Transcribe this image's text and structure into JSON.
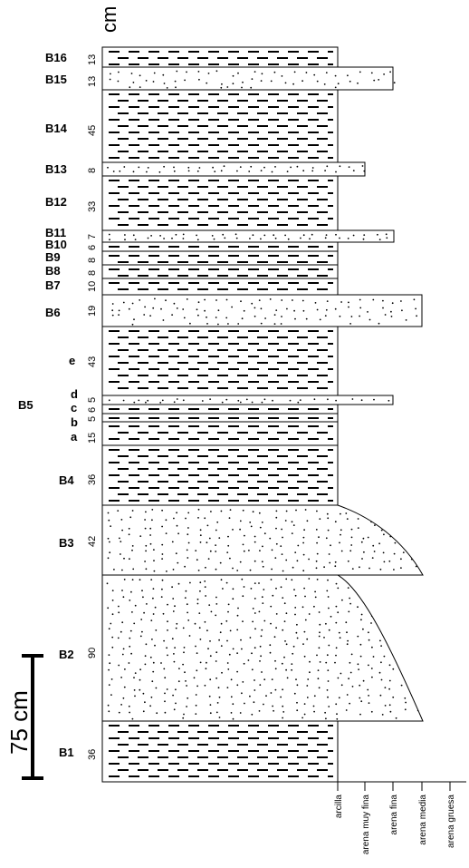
{
  "unit_label": "cm",
  "scale_bar": {
    "label": "75 cm",
    "length_cm": 75
  },
  "grain_sizes": [
    "arcilla",
    "arena muy fina",
    "arena fina",
    "arena media",
    "arena gruesa"
  ],
  "beds": [
    {
      "name": "B16",
      "thickness": "13",
      "lithology": "clay"
    },
    {
      "name": "B15",
      "thickness": "13",
      "lithology": "sand",
      "grain": "arena fina"
    },
    {
      "name": "B14",
      "thickness": "45",
      "lithology": "clay"
    },
    {
      "name": "B13",
      "thickness": "8",
      "lithology": "sand",
      "grain": "arena muy fina"
    },
    {
      "name": "B12",
      "thickness": "33",
      "lithology": "clay"
    },
    {
      "name": "B11",
      "thickness": "7",
      "lithology": "sand",
      "grain": "arena fina"
    },
    {
      "name": "B10",
      "thickness": "6",
      "lithology": "clay"
    },
    {
      "name": "B9",
      "thickness": "8",
      "lithology": "clay"
    },
    {
      "name": "B8",
      "thickness": "8",
      "lithology": "clay"
    },
    {
      "name": "B7",
      "thickness": "10",
      "lithology": "clay"
    },
    {
      "name": "B6",
      "thickness": "19",
      "lithology": "sand",
      "grain": "arena media"
    },
    {
      "name": "e",
      "thickness": "43",
      "lithology": "clay",
      "group": "B5"
    },
    {
      "name": "d",
      "thickness": "5",
      "lithology": "sand",
      "grain": "arena fina",
      "group": "B5"
    },
    {
      "name": "c",
      "thickness": "6",
      "lithology": "clay",
      "group": "B5"
    },
    {
      "name": "b",
      "thickness": "5",
      "lithology": "clay",
      "group": "B5"
    },
    {
      "name": "a",
      "thickness": "15",
      "lithology": "clay",
      "group": "B5"
    },
    {
      "name": "B4",
      "thickness": "36",
      "lithology": "clay"
    },
    {
      "name": "B3",
      "thickness": "42",
      "lithology": "sand",
      "grain": "arena media"
    },
    {
      "name": "B2",
      "thickness": "90",
      "lithology": "sand",
      "grain": "arena media"
    },
    {
      "name": "B1",
      "thickness": "36",
      "lithology": "clay"
    }
  ],
  "group_labels": [
    {
      "name": "B5"
    }
  ]
}
